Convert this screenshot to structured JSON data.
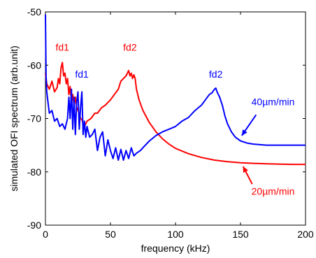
{
  "chart_data": {
    "type": "line",
    "xlabel": "frequency (kHz)",
    "ylabel": "simulated OFI spectrum (arb.unit)",
    "xlim": [
      0,
      200
    ],
    "ylim": [
      -90,
      -50
    ],
    "x_ticks": [
      0,
      50,
      100,
      150,
      200
    ],
    "y_ticks": [
      -90,
      -80,
      -70,
      -60,
      -50
    ],
    "grid": false,
    "legend": "none",
    "series": [
      {
        "name": "20µm/min",
        "color": "#ff0000",
        "x": [
          0,
          1,
          3,
          5,
          7,
          9,
          10,
          11,
          12,
          13,
          14,
          15,
          16,
          17,
          18,
          19,
          20,
          21,
          22,
          23,
          24,
          25,
          26,
          27,
          28,
          29,
          30,
          32,
          35,
          38,
          40,
          43,
          46,
          50,
          53,
          56,
          58,
          60,
          62,
          64,
          65,
          66,
          67,
          68,
          69,
          70,
          72,
          75,
          80,
          85,
          90,
          95,
          100,
          110,
          120,
          130,
          140,
          150,
          160,
          170,
          180,
          190,
          200
        ],
        "y": [
          -61.5,
          -63.5,
          -64.5,
          -63,
          -65,
          -64.2,
          -62.5,
          -63.5,
          -60.5,
          -59.5,
          -62,
          -61.5,
          -63.5,
          -62.5,
          -65.5,
          -64,
          -67,
          -65.5,
          -67.5,
          -66,
          -67.8,
          -68.5,
          -69,
          -70,
          -70.2,
          -71,
          -71.5,
          -70.5,
          -70,
          -69,
          -69,
          -68,
          -67.5,
          -66.5,
          -65.5,
          -64.5,
          -63,
          -62.5,
          -62,
          -61,
          -62,
          -61.5,
          -62.5,
          -61.8,
          -62.5,
          -64.5,
          -66.5,
          -68.5,
          -70.8,
          -72.5,
          -73.8,
          -74.8,
          -75.6,
          -76.6,
          -77.3,
          -77.8,
          -78.1,
          -78.3,
          -78.4,
          -78.5,
          -78.55,
          -78.6,
          -78.6
        ]
      },
      {
        "name": "40µm/min",
        "color": "#0000ff",
        "x": [
          0,
          0.5,
          1,
          2,
          3,
          5,
          7,
          9,
          11,
          13,
          15,
          17,
          18,
          19,
          20,
          21,
          22,
          23,
          24,
          25,
          26,
          27,
          28,
          29,
          30,
          31,
          32,
          34,
          36,
          38,
          40,
          42,
          44,
          46,
          48,
          50,
          52,
          54,
          56,
          58,
          60,
          62,
          64,
          66,
          68,
          70,
          73,
          76,
          80,
          85,
          90,
          95,
          100,
          105,
          110,
          115,
          120,
          123,
          126,
          128,
          130,
          131,
          132,
          134,
          136,
          138,
          140,
          143,
          146,
          150,
          155,
          160,
          165,
          170,
          175,
          180,
          185,
          190,
          195,
          200
        ],
        "y": [
          -50.5,
          -62,
          -65,
          -67,
          -69,
          -68.5,
          -70.5,
          -70,
          -71.5,
          -71,
          -72,
          -70,
          -66,
          -70,
          -64.5,
          -72,
          -66,
          -73,
          -67,
          -65,
          -72,
          -68,
          -65,
          -73,
          -70.5,
          -73.5,
          -71.5,
          -73.5,
          -73,
          -72,
          -76,
          -73.5,
          -72.5,
          -77,
          -74,
          -76,
          -77.5,
          -75.5,
          -77.8,
          -75.8,
          -77.8,
          -76,
          -77.5,
          -75.5,
          -77,
          -76.5,
          -76,
          -75.2,
          -74.2,
          -73.2,
          -72.5,
          -72,
          -71.5,
          -70.5,
          -69.8,
          -68.5,
          -67.5,
          -66.5,
          -65.5,
          -65.2,
          -64.5,
          -64.3,
          -65,
          -66,
          -67.5,
          -69.5,
          -71,
          -72.5,
          -73.5,
          -74.2,
          -74.6,
          -74.8,
          -74.9,
          -75,
          -75,
          -75,
          -75,
          -75,
          -75,
          -75
        ]
      }
    ],
    "annotations": [
      {
        "text": "fd1",
        "color": "#ff0000",
        "x": 13,
        "y": -57.3
      },
      {
        "text": "fd1",
        "color": "#0000ff",
        "x": 28,
        "y": -62.3
      },
      {
        "text": "fd2",
        "color": "#ff0000",
        "x": 65,
        "y": -57.3
      },
      {
        "text": "fd2",
        "color": "#0000ff",
        "x": 131,
        "y": -62.3
      },
      {
        "text": "40µm/min",
        "color": "#0000ff",
        "x": 175,
        "y": -67.5
      },
      {
        "text": "20µm/min",
        "color": "#ff0000",
        "x": 175,
        "y": -84.3
      }
    ],
    "arrows": [
      {
        "color": "#0000ff",
        "from": [
          162,
          -69.3
        ],
        "to": [
          151,
          -73.2
        ]
      },
      {
        "color": "#ff0000",
        "from": [
          159,
          -82.3
        ],
        "to": [
          152,
          -79.0
        ]
      }
    ]
  }
}
